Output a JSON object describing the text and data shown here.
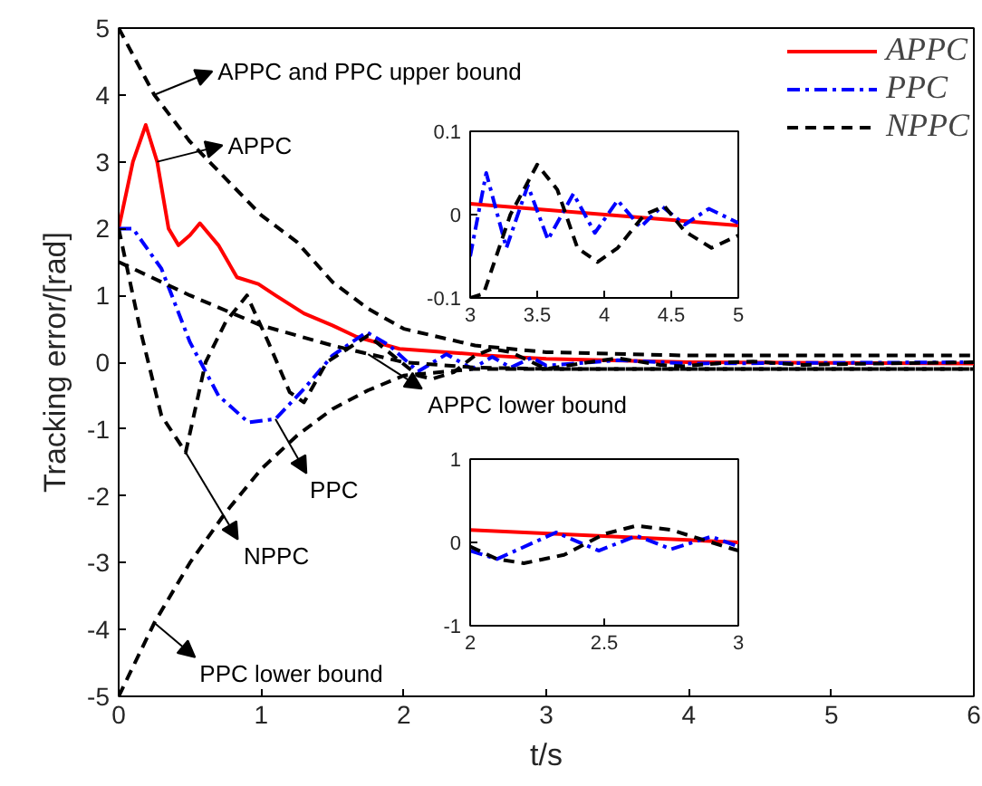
{
  "chart_data": [
    {
      "type": "line",
      "xlabel": "t/s",
      "ylabel": "Tracking error/[rad]",
      "xlim": [
        0,
        6
      ],
      "ylim": [
        -5,
        5
      ],
      "xticks": [
        0,
        1,
        2,
        3,
        4,
        5,
        6
      ],
      "yticks": [
        -5,
        -4,
        -3,
        -2,
        -1,
        0,
        1,
        2,
        3,
        4,
        5
      ],
      "grid": false,
      "legend": "top right",
      "series": [
        {
          "name": "APPC",
          "color": "#ff0000",
          "line_style": "solid",
          "x": [
            0,
            0.1,
            0.19,
            0.27,
            0.35,
            0.42,
            0.5,
            0.57,
            0.7,
            0.83,
            0.98,
            1.1,
            1.3,
            1.5,
            1.67,
            1.97,
            2.3,
            2.6,
            3,
            4,
            5,
            6
          ],
          "values": [
            2,
            3.0,
            3.55,
            3.0,
            2.0,
            1.75,
            1.9,
            2.08,
            1.75,
            1.27,
            1.17,
            1.0,
            0.73,
            0.55,
            0.38,
            0.2,
            0.15,
            0.1,
            0.05,
            0.0,
            -0.01,
            -0.02
          ]
        },
        {
          "name": "PPC",
          "color": "#0000ff",
          "line_style": "dashdot",
          "x": [
            0,
            0.1,
            0.3,
            0.5,
            0.7,
            0.91,
            1.1,
            1.3,
            1.5,
            1.74,
            1.9,
            2.1,
            2.3,
            2.48,
            2.62,
            2.75,
            2.9,
            3,
            3.5,
            4,
            5,
            6
          ],
          "values": [
            2,
            2.0,
            1.4,
            0.3,
            -0.5,
            -0.9,
            -0.85,
            -0.4,
            0.1,
            0.45,
            0.25,
            -0.14,
            0.12,
            -0.1,
            0.08,
            -0.08,
            0.07,
            -0.05,
            0.03,
            -0.02,
            -0.01,
            0.0
          ]
        },
        {
          "name": "NPPC",
          "color": "#000000",
          "line_style": "dashed",
          "x": [
            0,
            0.15,
            0.3,
            0.47,
            0.61,
            0.75,
            0.9,
            1.05,
            1.2,
            1.3,
            1.46,
            1.75,
            2.1,
            2.2,
            2.35,
            2.5,
            2.62,
            2.75,
            2.9,
            3,
            3.3,
            3.5,
            3.8,
            3.95,
            4.3,
            4.45,
            4.8,
            5,
            6
          ],
          "values": [
            2,
            0.5,
            -0.8,
            -1.35,
            0,
            0.6,
            1.0,
            0.3,
            -0.45,
            -0.6,
            0.0,
            0.4,
            -0.2,
            -0.25,
            -0.15,
            0.1,
            0.2,
            0.15,
            0.0,
            -0.1,
            0.0,
            0.06,
            -0.04,
            -0.06,
            0.0,
            0.01,
            -0.04,
            -0.03,
            0.0
          ]
        },
        {
          "color": "#000000",
          "line_style": "dashed",
          "x": [
            0,
            0.25,
            0.5,
            0.75,
            1,
            1.25,
            1.5,
            1.75,
            2,
            2.5,
            3,
            4,
            6
          ],
          "values": [
            5,
            4.0,
            3.3,
            2.75,
            2.2,
            1.8,
            1.2,
            0.8,
            0.5,
            0.25,
            0.15,
            0.1,
            0.1
          ]
        },
        {
          "color": "#000000",
          "line_style": "dashed",
          "x": [
            0,
            0.5,
            1,
            1.5,
            2,
            2.5,
            3,
            6
          ],
          "values": [
            1.5,
            1.0,
            0.55,
            0.25,
            0.0,
            -0.08,
            -0.1,
            -0.1
          ]
        },
        {
          "color": "#000000",
          "line_style": "dashed",
          "x": [
            0,
            0.25,
            0.5,
            0.75,
            1,
            1.25,
            1.5,
            1.75,
            2,
            2.5,
            3,
            6
          ],
          "values": [
            -5,
            -3.9,
            -3.0,
            -2.25,
            -1.6,
            -1.1,
            -0.7,
            -0.42,
            -0.2,
            -0.1,
            -0.1,
            -0.1
          ]
        }
      ],
      "annotations": [
        {
          "text": "APPC and PPC upper bound",
          "x": 0.25,
          "y": 4.0
        },
        {
          "text": "APPC",
          "x": 0.27,
          "y": 3.0
        },
        {
          "text": "PPC",
          "x": 1.1,
          "y": -0.85
        },
        {
          "text": "NPPC",
          "x": 0.47,
          "y": -1.35
        },
        {
          "text": "APPC lower bound",
          "x": 1.75,
          "y": 0.12
        },
        {
          "text": "PPC lower bound",
          "x": 0.25,
          "y": -3.9
        }
      ]
    },
    {
      "type": "line",
      "xlim": [
        3,
        5
      ],
      "ylim": [
        -0.1,
        0.1
      ],
      "xticks": [
        3,
        3.5,
        4,
        4.5,
        5
      ],
      "yticks": [
        -0.1,
        0,
        0.1
      ],
      "grid": false,
      "series": [
        {
          "color": "#ff0000",
          "line_style": "solid",
          "x": [
            3,
            5
          ],
          "values": [
            0.013,
            -0.013
          ]
        },
        {
          "color": "#0000ff",
          "line_style": "dashdot",
          "x": [
            3,
            3.12,
            3.27,
            3.43,
            3.58,
            3.77,
            3.93,
            4.1,
            4.27,
            4.43,
            4.6,
            4.78,
            5
          ],
          "values": [
            -0.05,
            0.05,
            -0.04,
            0.035,
            -0.03,
            0.025,
            -0.022,
            0.017,
            -0.015,
            0.01,
            -0.012,
            0.007,
            -0.01
          ]
        },
        {
          "color": "#000000",
          "line_style": "dashed",
          "x": [
            3,
            3.1,
            3.3,
            3.5,
            3.65,
            3.8,
            3.95,
            4.1,
            4.3,
            4.45,
            4.6,
            4.8,
            5
          ],
          "values": [
            -0.1,
            -0.095,
            0.0,
            0.06,
            0.03,
            -0.04,
            -0.057,
            -0.04,
            0.0,
            0.01,
            -0.02,
            -0.04,
            -0.025
          ]
        }
      ]
    },
    {
      "type": "line",
      "xlim": [
        2,
        3
      ],
      "ylim": [
        -1,
        1
      ],
      "xticks": [
        2,
        2.5,
        3
      ],
      "yticks": [
        -1,
        0,
        1
      ],
      "grid": false,
      "series": [
        {
          "color": "#ff0000",
          "line_style": "solid",
          "x": [
            2,
            3
          ],
          "values": [
            0.15,
            0.0
          ]
        },
        {
          "color": "#0000ff",
          "line_style": "dashdot",
          "x": [
            2,
            2.1,
            2.32,
            2.48,
            2.62,
            2.75,
            2.9,
            3
          ],
          "values": [
            -0.1,
            -0.2,
            0.12,
            -0.1,
            0.08,
            -0.08,
            0.07,
            -0.05
          ]
        },
        {
          "color": "#000000",
          "line_style": "dashed",
          "x": [
            2,
            2.1,
            2.2,
            2.35,
            2.5,
            2.62,
            2.75,
            2.9,
            3
          ],
          "values": [
            -0.05,
            -0.2,
            -0.25,
            -0.15,
            0.1,
            0.2,
            0.15,
            0.0,
            -0.1
          ]
        }
      ]
    }
  ]
}
